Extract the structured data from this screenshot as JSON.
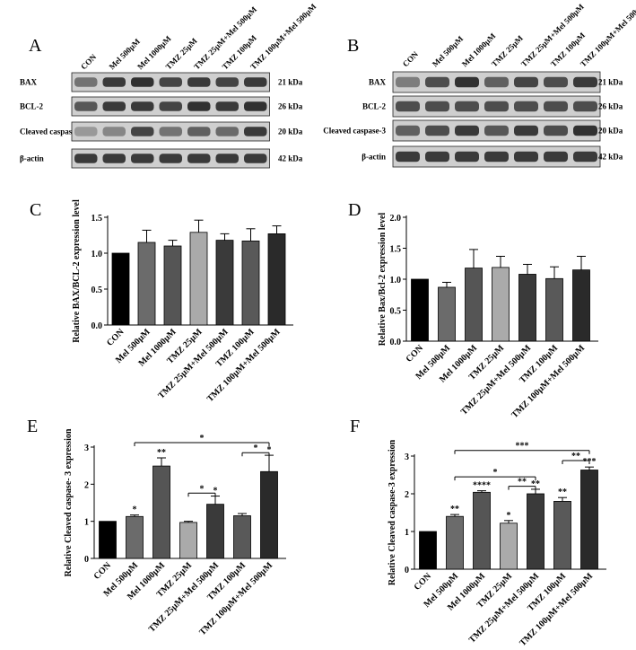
{
  "panels": {
    "a": "A",
    "b": "B",
    "c": "C",
    "d": "D",
    "e": "E",
    "f": "F"
  },
  "conditions": [
    "CON",
    "Mel 500μM",
    "Mel 1000μM",
    "TMZ 25μM",
    "TMZ 25μM+Mel 500μM",
    "TMZ 100μM",
    "TMZ 100μM+Mel 500μM"
  ],
  "blots": [
    {
      "id": "A",
      "rows": [
        {
          "label": "BAX",
          "kda": "21 kDa",
          "intensity": [
            0.55,
            0.85,
            0.9,
            0.8,
            0.85,
            0.8,
            0.85
          ]
        },
        {
          "label": "BCL-2",
          "kda": "26 kDa",
          "intensity": [
            0.7,
            0.85,
            0.85,
            0.8,
            0.9,
            0.85,
            0.9
          ]
        },
        {
          "label": "Cleaved caspase-3",
          "kda": "20 kDa",
          "intensity": [
            0.35,
            0.45,
            0.8,
            0.55,
            0.65,
            0.6,
            0.85
          ]
        },
        {
          "label": "β-actin",
          "kda": "42 kDa",
          "intensity": [
            0.85,
            0.85,
            0.85,
            0.85,
            0.85,
            0.85,
            0.85
          ]
        }
      ]
    },
    {
      "id": "B",
      "rows": [
        {
          "label": "BAX",
          "kda": "21 kDa",
          "intensity": [
            0.5,
            0.75,
            0.9,
            0.65,
            0.8,
            0.75,
            0.85
          ]
        },
        {
          "label": "BCL-2",
          "kda": "26 kDa",
          "intensity": [
            0.75,
            0.75,
            0.75,
            0.75,
            0.75,
            0.75,
            0.75
          ]
        },
        {
          "label": "Cleaved caspase-3",
          "kda": "20 kDa",
          "intensity": [
            0.65,
            0.75,
            0.85,
            0.7,
            0.85,
            0.75,
            0.9
          ]
        },
        {
          "label": "β-actin",
          "kda": "42 kDa",
          "intensity": [
            0.85,
            0.85,
            0.85,
            0.85,
            0.85,
            0.85,
            0.85
          ]
        }
      ]
    }
  ],
  "chart_data": [
    {
      "panel": "C",
      "type": "bar",
      "ylabel": "Relative BAX/BCL-2 expression level",
      "ylim": [
        0,
        1.5
      ],
      "yticks": [
        "0.0",
        "0.5",
        "1.0",
        "1.5"
      ],
      "categories": [
        "CON",
        "Mel 500μM",
        "Mel 1000μM",
        "TMZ 25μM",
        "TMZ 25μM+Mel 500μM",
        "TMZ 100μM",
        "TMZ 100μM+Mel 500μM"
      ],
      "values": [
        1.0,
        1.15,
        1.1,
        1.29,
        1.18,
        1.17,
        1.27
      ],
      "errors": [
        0,
        0.17,
        0.08,
        0.17,
        0.09,
        0.17,
        0.11
      ],
      "colors": [
        "#000000",
        "#6b6b6b",
        "#555555",
        "#aaaaaa",
        "#3a3a3a",
        "#595959",
        "#2a2a2a"
      ],
      "significance": []
    },
    {
      "panel": "D",
      "type": "bar",
      "ylabel": "Relative Bax/Bcl-2 expression level",
      "ylim": [
        0,
        2.0
      ],
      "yticks": [
        "0.0",
        "0.5",
        "1.0",
        "1.5",
        "2.0"
      ],
      "categories": [
        "CON",
        "Mel 500μM",
        "Mel 1000μM",
        "TMZ 25μM",
        "TMZ 25μM+Mel 500μM",
        "TMZ 100μM",
        "TMZ 100μM+Mel 500μM"
      ],
      "values": [
        1.0,
        0.87,
        1.18,
        1.19,
        1.08,
        1.01,
        1.15
      ],
      "errors": [
        0,
        0.08,
        0.3,
        0.18,
        0.16,
        0.19,
        0.22
      ],
      "colors": [
        "#000000",
        "#6b6b6b",
        "#555555",
        "#aaaaaa",
        "#3a3a3a",
        "#595959",
        "#2a2a2a"
      ],
      "significance": []
    },
    {
      "panel": "E",
      "type": "bar",
      "ylabel": "Relative Cleaved caspase- 3 expression",
      "ylim": [
        0,
        3
      ],
      "yticks": [
        "0",
        "1",
        "2",
        "3"
      ],
      "categories": [
        "CON",
        "Mel 500μM",
        "Mel 1000μM",
        "TMZ 25μM",
        "TMZ 25μM+Mel 500μM",
        "TMZ 100μM",
        "TMZ 100μM+Mel 500μM"
      ],
      "values": [
        1.0,
        1.13,
        2.49,
        0.97,
        1.46,
        1.15,
        2.34
      ],
      "errors": [
        0,
        0.04,
        0.22,
        0.03,
        0.22,
        0.06,
        0.44
      ],
      "colors": [
        "#000000",
        "#6b6b6b",
        "#555555",
        "#aaaaaa",
        "#3a3a3a",
        "#595959",
        "#2a2a2a"
      ],
      "bar_stars": [
        "",
        "*",
        "**",
        "",
        "*",
        "",
        "*"
      ],
      "brackets": [
        {
          "from": 1,
          "to": 6,
          "level": 3.12,
          "label": "*"
        },
        {
          "from": 5,
          "to": 6,
          "level": 2.85,
          "label": "*"
        },
        {
          "from": 3,
          "to": 4,
          "level": 1.76,
          "label": "*"
        }
      ]
    },
    {
      "panel": "F",
      "type": "bar",
      "ylabel": "Relative Cleaved caspase-3 expression",
      "ylim": [
        0,
        3
      ],
      "yticks": [
        "0",
        "1",
        "2",
        "3"
      ],
      "categories": [
        "CON",
        "Mel 500μM",
        "Mel 1000μM",
        "TMZ 25μM",
        "TMZ 25μM+Mel 500μM",
        "TMZ 100μM",
        "TMZ 100μM+Mel 500μM"
      ],
      "values": [
        1.0,
        1.4,
        2.04,
        1.22,
        2.0,
        1.8,
        2.63
      ],
      "errors": [
        0,
        0.05,
        0.04,
        0.07,
        0.12,
        0.1,
        0.08
      ],
      "colors": [
        "#000000",
        "#6b6b6b",
        "#555555",
        "#aaaaaa",
        "#3a3a3a",
        "#595959",
        "#2a2a2a"
      ],
      "bar_stars": [
        "",
        "**",
        "****",
        "*",
        "**",
        "**",
        "***"
      ],
      "brackets": [
        {
          "from": 1,
          "to": 6,
          "level": 3.15,
          "label": "***"
        },
        {
          "from": 5,
          "to": 6,
          "level": 2.88,
          "label": "**"
        },
        {
          "from": 1,
          "to": 4,
          "level": 2.45,
          "label": "*"
        },
        {
          "from": 3,
          "to": 4,
          "level": 2.2,
          "label": "**"
        }
      ]
    }
  ]
}
